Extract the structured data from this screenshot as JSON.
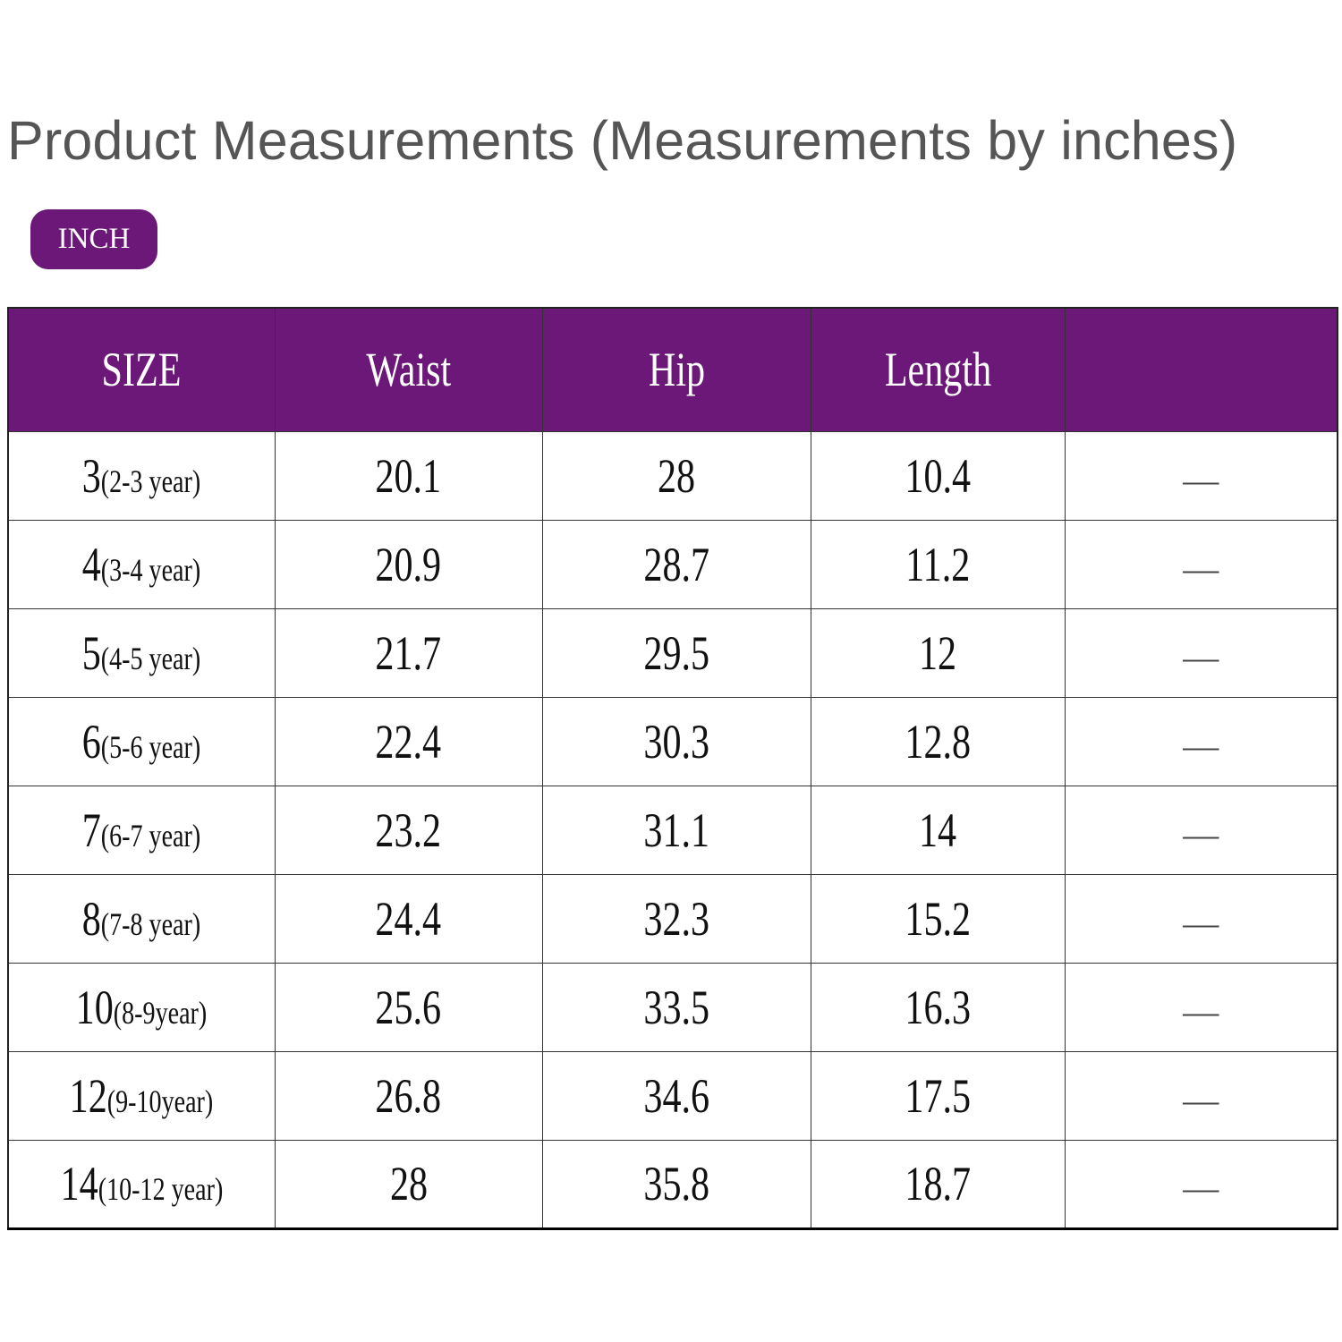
{
  "title": "Product Measurements (Measurements by inches)",
  "unit_badge": "INCH",
  "colors": {
    "header_bg": "#6b1878",
    "header_text": "#ffffff"
  },
  "table": {
    "headers": [
      "SIZE",
      "Waist",
      "Hip",
      "Length",
      ""
    ],
    "rows": [
      {
        "size": "3",
        "age": "(2-3 year)",
        "waist": "20.1",
        "hip": "28",
        "length": "10.4",
        "extra": "—"
      },
      {
        "size": "4",
        "age": "(3-4 year)",
        "waist": "20.9",
        "hip": "28.7",
        "length": "11.2",
        "extra": "—"
      },
      {
        "size": "5",
        "age": "(4-5 year)",
        "waist": "21.7",
        "hip": "29.5",
        "length": "12",
        "extra": "—"
      },
      {
        "size": "6",
        "age": "(5-6 year)",
        "waist": "22.4",
        "hip": "30.3",
        "length": "12.8",
        "extra": "—"
      },
      {
        "size": "7",
        "age": "(6-7 year)",
        "waist": "23.2",
        "hip": "31.1",
        "length": "14",
        "extra": "—"
      },
      {
        "size": "8",
        "age": "(7-8 year)",
        "waist": "24.4",
        "hip": "32.3",
        "length": "15.2",
        "extra": "—"
      },
      {
        "size": "10",
        "age": "(8-9year)",
        "waist": "25.6",
        "hip": "33.5",
        "length": "16.3",
        "extra": "—"
      },
      {
        "size": "12",
        "age": "(9-10year)",
        "waist": "26.8",
        "hip": "34.6",
        "length": "17.5",
        "extra": "—"
      },
      {
        "size": "14",
        "age": "(10-12 year)",
        "waist": "28",
        "hip": "35.8",
        "length": "18.7",
        "extra": "—"
      }
    ]
  }
}
